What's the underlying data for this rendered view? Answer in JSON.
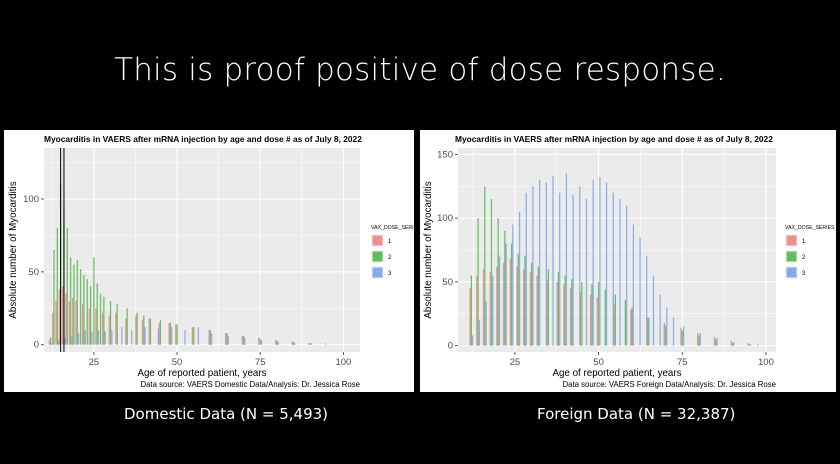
{
  "slide": {
    "title": "This is proof positive of dose response.",
    "caption_left": "Domestic Data (N = 5,493)",
    "caption_right": "Foreign Data (N = 32,387)"
  },
  "colors": {
    "dose1": "#e8766f",
    "dose2": "#3fac3a",
    "dose3": "#6a98e9",
    "panel_bg": "#ebebeb"
  },
  "chart_data": [
    {
      "type": "bar",
      "title": "Myocarditis in VAERS after mRNA injection by age and dose # as of July 8, 2022",
      "xlabel": "Age of reported patient, years",
      "ylabel": "Absolute number of Myocarditis",
      "source": "Data source: VAERS Domestic Data/Analysis: Dr. Jessica Rose",
      "legend_title": "VAX_DOSE_SERIES",
      "legend_position": "right",
      "xlim": [
        10,
        105
      ],
      "ylim": [
        -5,
        135
      ],
      "xticks": [
        25,
        50,
        75,
        100
      ],
      "yticks": [
        0,
        50,
        100
      ],
      "grid": true,
      "vlines": [
        15,
        16
      ],
      "series": [
        {
          "name": "1",
          "x": [
            12,
            13,
            14,
            15,
            16,
            17,
            18,
            19,
            20,
            22,
            24,
            26,
            28,
            30,
            32,
            35,
            38,
            40,
            42,
            45,
            48,
            50,
            55,
            60,
            65,
            70,
            75,
            80,
            85,
            90,
            95
          ],
          "values": [
            3,
            22,
            30,
            38,
            40,
            35,
            30,
            32,
            30,
            28,
            25,
            25,
            22,
            20,
            22,
            18,
            20,
            17,
            18,
            15,
            15,
            14,
            12,
            10,
            8,
            6,
            5,
            3,
            2,
            1,
            1
          ]
        },
        {
          "name": "2",
          "x": [
            12,
            13,
            14,
            15,
            16,
            17,
            18,
            19,
            20,
            21,
            22,
            23,
            24,
            25,
            26,
            27,
            28,
            30,
            32,
            35,
            38,
            40,
            42,
            45,
            48,
            50,
            55,
            60,
            65,
            70,
            75,
            80,
            85,
            90
          ],
          "values": [
            5,
            65,
            80,
            110,
            95,
            80,
            60,
            55,
            58,
            52,
            48,
            45,
            40,
            60,
            42,
            35,
            33,
            30,
            28,
            25,
            22,
            20,
            18,
            17,
            15,
            14,
            12,
            10,
            8,
            6,
            4,
            3,
            2,
            1
          ]
        },
        {
          "name": "3",
          "x": [
            12,
            14,
            16,
            18,
            20,
            22,
            24,
            26,
            28,
            30,
            33,
            36,
            40,
            44,
            48,
            52,
            56,
            60,
            65,
            70,
            75,
            80,
            85,
            90
          ],
          "values": [
            1,
            3,
            5,
            6,
            8,
            10,
            9,
            10,
            9,
            10,
            12,
            10,
            12,
            11,
            12,
            10,
            12,
            8,
            6,
            5,
            3,
            2,
            1,
            1
          ]
        }
      ]
    },
    {
      "type": "bar",
      "title": "Myocarditis in VAERS after mRNA injection by age and dose # as of July 8, 2022",
      "xlabel": "Age of reported patient, years",
      "ylabel": "Absolute number of Myocarditis",
      "source": "Data source: VAERS Foreign Data/Analysis: Dr. Jessica Rose",
      "legend_title": "VAX_DOSE_SERIES",
      "legend_position": "right",
      "xlim": [
        8,
        103
      ],
      "ylim": [
        -5,
        155
      ],
      "xticks": [
        25,
        50,
        75,
        100
      ],
      "yticks": [
        0,
        50,
        100,
        150
      ],
      "grid": true,
      "series": [
        {
          "name": "1",
          "x": [
            12,
            14,
            16,
            18,
            20,
            22,
            24,
            26,
            28,
            30,
            32,
            35,
            38,
            40,
            42,
            45,
            48,
            50,
            55,
            60,
            65,
            70,
            75,
            80,
            85,
            90,
            95,
            98
          ],
          "values": [
            45,
            55,
            60,
            58,
            62,
            65,
            68,
            62,
            60,
            58,
            55,
            52,
            50,
            48,
            45,
            42,
            40,
            38,
            32,
            28,
            22,
            18,
            14,
            10,
            7,
            4,
            2,
            1
          ]
        },
        {
          "name": "2",
          "x": [
            12,
            14,
            16,
            18,
            20,
            22,
            24,
            26,
            28,
            30,
            32,
            35,
            38,
            40,
            42,
            45,
            48,
            50,
            52,
            55,
            58,
            60,
            65,
            70,
            75,
            80,
            85,
            90,
            95
          ],
          "values": [
            55,
            100,
            125,
            115,
            100,
            90,
            80,
            72,
            70,
            65,
            62,
            60,
            58,
            55,
            52,
            50,
            48,
            50,
            44,
            40,
            36,
            30,
            22,
            16,
            12,
            8,
            5,
            2,
            1
          ]
        },
        {
          "name": "3",
          "x": [
            12,
            14,
            16,
            18,
            20,
            22,
            24,
            26,
            28,
            30,
            32,
            34,
            36,
            38,
            40,
            42,
            44,
            46,
            48,
            50,
            52,
            54,
            56,
            58,
            60,
            62,
            64,
            66,
            68,
            70,
            72,
            75,
            80,
            85,
            90,
            95
          ],
          "values": [
            8,
            20,
            35,
            55,
            70,
            80,
            95,
            105,
            120,
            125,
            130,
            128,
            133,
            120,
            135,
            118,
            125,
            115,
            130,
            132,
            128,
            120,
            115,
            110,
            95,
            85,
            70,
            55,
            40,
            30,
            22,
            15,
            10,
            6,
            3,
            1
          ]
        }
      ]
    }
  ]
}
